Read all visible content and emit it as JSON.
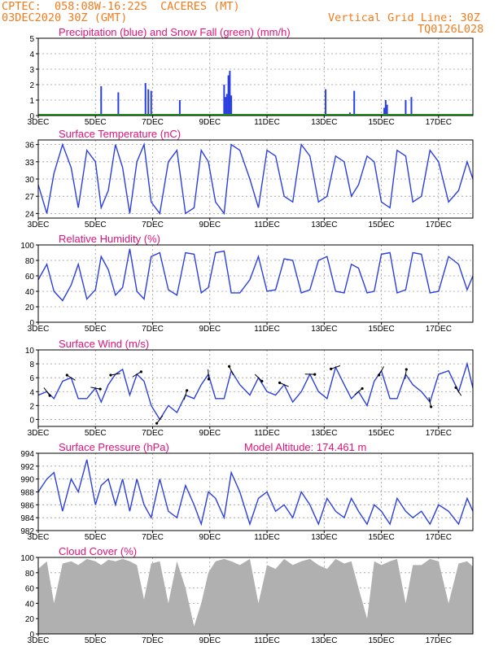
{
  "header": {
    "line1": "CPTEC:  058:08W-16:22S  CACERES (MT)",
    "line2": "03DEC2020 30Z (GMT)",
    "grid_note": "Vertical Grid Line: 30Z",
    "code": "TQ0126L028"
  },
  "x_ticks": [
    "3DEC",
    "5DEC",
    "7DEC",
    "9DEC",
    "11DEC",
    "13DEC",
    "15DEC",
    "17DEC"
  ],
  "x_tick_days": [
    0,
    2,
    4,
    6,
    8,
    10,
    12,
    14
  ],
  "x_days_total": 15.2,
  "colors": {
    "line": "#2a3fe0",
    "snow": "#1fa31f",
    "label": "#e0127a",
    "header": "#f07c1e",
    "cloud": "#b0b0b0",
    "axis": "#000000",
    "grid": "#9a9a9a"
  },
  "chart_data": [
    {
      "id": "precip",
      "type": "bar",
      "title": "Precipitation (blue) and Snow Fall (green) (mm/h)",
      "ylim": [
        0,
        5
      ],
      "yticks": [
        0,
        1,
        2,
        3,
        4,
        5
      ],
      "series": [
        {
          "name": "Precipitation",
          "color": "#2a3fe0",
          "points": [
            [
              2.2,
              1.9
            ],
            [
              2.8,
              1.5
            ],
            [
              3.75,
              2.1
            ],
            [
              3.85,
              1.7
            ],
            [
              3.95,
              1.6
            ],
            [
              4.95,
              1.0
            ],
            [
              6.5,
              2.0
            ],
            [
              6.55,
              1.2
            ],
            [
              6.6,
              1.4
            ],
            [
              6.65,
              2.6
            ],
            [
              6.7,
              2.9
            ],
            [
              6.75,
              1.3
            ],
            [
              10.05,
              1.7
            ],
            [
              10.9,
              0.2
            ],
            [
              11.05,
              1.6
            ],
            [
              12.1,
              0.5
            ],
            [
              12.15,
              1.0
            ],
            [
              12.2,
              0.7
            ],
            [
              12.85,
              1.0
            ],
            [
              13.05,
              1.2
            ]
          ]
        },
        {
          "name": "Snow Fall",
          "color": "#1fa31f",
          "points": []
        }
      ]
    },
    {
      "id": "temp",
      "type": "line",
      "title": "Surface Temperature (nC)",
      "ylim": [
        23.2,
        36.8
      ],
      "yticks": [
        24,
        27,
        30,
        33,
        36
      ],
      "x": [
        0,
        0.3,
        0.55,
        0.85,
        1.15,
        1.4,
        1.7,
        2.0,
        2.2,
        2.45,
        2.7,
        2.95,
        3.2,
        3.45,
        3.7,
        3.95,
        4.25,
        4.55,
        4.85,
        5.15,
        5.45,
        5.7,
        5.95,
        6.2,
        6.5,
        6.75,
        7.05,
        7.4,
        7.7,
        8.0,
        8.3,
        8.6,
        8.9,
        9.2,
        9.5,
        9.8,
        10.1,
        10.4,
        10.7,
        10.95,
        11.2,
        11.5,
        11.75,
        12.0,
        12.3,
        12.55,
        12.85,
        13.1,
        13.4,
        13.7,
        14.0,
        14.35,
        14.7,
        15.0,
        15.2
      ],
      "series": [
        {
          "name": "Temperature",
          "color": "#2a3fe0",
          "values": [
            29,
            24,
            31,
            36,
            32,
            25,
            35,
            33,
            25,
            28,
            36,
            32,
            24,
            33,
            36,
            26,
            24,
            33,
            35,
            24,
            25,
            35,
            33,
            26,
            24,
            36,
            35,
            30,
            25,
            35,
            34,
            27,
            26,
            36,
            34,
            26,
            27,
            34,
            33,
            27,
            29,
            34,
            33,
            26,
            25,
            35,
            34,
            26,
            27,
            35,
            33,
            26,
            28,
            33,
            30
          ]
        }
      ]
    },
    {
      "id": "rh",
      "type": "line",
      "title": "Relative Humidity (%)",
      "ylim": [
        0,
        100
      ],
      "yticks": [
        0,
        20,
        40,
        60,
        80,
        100
      ],
      "x": [
        0,
        0.3,
        0.55,
        0.85,
        1.15,
        1.4,
        1.7,
        2.0,
        2.2,
        2.45,
        2.7,
        2.95,
        3.2,
        3.45,
        3.7,
        3.95,
        4.25,
        4.55,
        4.85,
        5.15,
        5.45,
        5.7,
        5.95,
        6.2,
        6.5,
        6.75,
        7.05,
        7.4,
        7.7,
        8.0,
        8.3,
        8.6,
        8.9,
        9.2,
        9.5,
        9.8,
        10.1,
        10.4,
        10.7,
        10.95,
        11.2,
        11.5,
        11.75,
        12.0,
        12.3,
        12.55,
        12.85,
        13.1,
        13.4,
        13.7,
        14.0,
        14.35,
        14.7,
        15.0,
        15.2
      ],
      "series": [
        {
          "name": "Humidity",
          "color": "#2a3fe0",
          "values": [
            55,
            75,
            40,
            28,
            48,
            75,
            30,
            42,
            85,
            68,
            35,
            45,
            95,
            40,
            30,
            85,
            90,
            42,
            35,
            90,
            88,
            38,
            45,
            90,
            92,
            38,
            38,
            55,
            85,
            40,
            42,
            82,
            80,
            38,
            42,
            80,
            85,
            40,
            38,
            75,
            70,
            38,
            40,
            88,
            90,
            38,
            42,
            90,
            88,
            38,
            40,
            85,
            75,
            42,
            60
          ]
        }
      ]
    },
    {
      "id": "wind",
      "type": "line",
      "title": "Surface Wind (m/s)",
      "ylim": [
        -1,
        10
      ],
      "yticks": [
        0,
        2,
        4,
        6,
        8,
        10
      ],
      "x": [
        0,
        0.3,
        0.55,
        0.85,
        1.15,
        1.4,
        1.7,
        2.0,
        2.2,
        2.45,
        2.7,
        2.95,
        3.2,
        3.45,
        3.7,
        3.95,
        4.25,
        4.55,
        4.85,
        5.15,
        5.45,
        5.7,
        5.95,
        6.2,
        6.5,
        6.75,
        7.05,
        7.4,
        7.7,
        8.0,
        8.3,
        8.6,
        8.9,
        9.2,
        9.5,
        9.8,
        10.1,
        10.4,
        10.7,
        10.95,
        11.2,
        11.5,
        11.75,
        12.0,
        12.3,
        12.55,
        12.85,
        13.1,
        13.4,
        13.7,
        14.0,
        14.35,
        14.7,
        15.0,
        15.2
      ],
      "series": [
        {
          "name": "Wind speed",
          "color": "#2a3fe0",
          "values": [
            3.5,
            4,
            3,
            5.5,
            6,
            3,
            3,
            4.5,
            2.5,
            5,
            6.5,
            7.2,
            3.5,
            6.5,
            5.5,
            2,
            0,
            2,
            1,
            3.5,
            3,
            5,
            6.5,
            3,
            3,
            7,
            5,
            3.5,
            6,
            4,
            3.5,
            5,
            2.5,
            4,
            6.5,
            4,
            3,
            7.5,
            5,
            3,
            4,
            2,
            5.5,
            7,
            3,
            3,
            6.5,
            5,
            4,
            2.5,
            6.5,
            7,
            4,
            8,
            4.5
          ]
        }
      ]
    },
    {
      "id": "pressure",
      "type": "line",
      "title": "Surface Pressure (hPa)",
      "annotation": "Model Altitude: 174.461 m",
      "ylim": [
        982,
        994
      ],
      "yticks": [
        982,
        984,
        986,
        988,
        990,
        992,
        994
      ],
      "x": [
        0,
        0.3,
        0.55,
        0.85,
        1.15,
        1.4,
        1.7,
        2.0,
        2.2,
        2.45,
        2.7,
        2.95,
        3.2,
        3.45,
        3.7,
        3.95,
        4.25,
        4.55,
        4.85,
        5.15,
        5.45,
        5.7,
        5.95,
        6.2,
        6.5,
        6.75,
        7.05,
        7.4,
        7.7,
        8.0,
        8.3,
        8.6,
        8.9,
        9.2,
        9.5,
        9.8,
        10.1,
        10.4,
        10.7,
        10.95,
        11.2,
        11.5,
        11.75,
        12.0,
        12.3,
        12.55,
        12.85,
        13.1,
        13.4,
        13.7,
        14.0,
        14.35,
        14.7,
        15.0,
        15.2
      ],
      "series": [
        {
          "name": "Pressure",
          "color": "#2a3fe0",
          "values": [
            988,
            990,
            991,
            985,
            990,
            988,
            993,
            986,
            989,
            990,
            986,
            990,
            985,
            990,
            986,
            984,
            990,
            985,
            984,
            989,
            986,
            983,
            988,
            987,
            984,
            991,
            988,
            983,
            987,
            988,
            985,
            986,
            984,
            988,
            986,
            983,
            987,
            985,
            984,
            987,
            985,
            983,
            986,
            985,
            983,
            987,
            985,
            984,
            985,
            983,
            986,
            985,
            983,
            987,
            985
          ]
        }
      ]
    },
    {
      "id": "cloud",
      "type": "area",
      "title": "Cloud Cover (%)",
      "ylim": [
        0,
        100
      ],
      "yticks": [
        0,
        20,
        40,
        60,
        80,
        100
      ],
      "x": [
        0,
        0.3,
        0.55,
        0.85,
        1.15,
        1.4,
        1.7,
        2.0,
        2.2,
        2.45,
        2.7,
        2.95,
        3.2,
        3.45,
        3.7,
        3.95,
        4.25,
        4.55,
        4.85,
        5.15,
        5.45,
        5.7,
        5.95,
        6.2,
        6.5,
        6.75,
        7.05,
        7.4,
        7.7,
        8.0,
        8.3,
        8.6,
        8.9,
        9.2,
        9.5,
        9.8,
        10.1,
        10.4,
        10.7,
        10.95,
        11.2,
        11.5,
        11.75,
        12.0,
        12.3,
        12.55,
        12.85,
        13.1,
        13.4,
        13.7,
        14.0,
        14.35,
        14.7,
        15.0,
        15.2
      ],
      "series": [
        {
          "name": "Cloud Cover",
          "color": "#b0b0b0",
          "values": [
            85,
            95,
            40,
            92,
            95,
            90,
            98,
            95,
            90,
            97,
            95,
            98,
            95,
            90,
            45,
            92,
            95,
            40,
            95,
            60,
            10,
            40,
            80,
            95,
            98,
            95,
            90,
            98,
            40,
            90,
            85,
            98,
            90,
            95,
            98,
            90,
            85,
            98,
            92,
            95,
            60,
            20,
            95,
            90,
            95,
            98,
            40,
            90,
            90,
            98,
            95,
            40,
            92,
            95,
            88
          ]
        }
      ]
    }
  ]
}
